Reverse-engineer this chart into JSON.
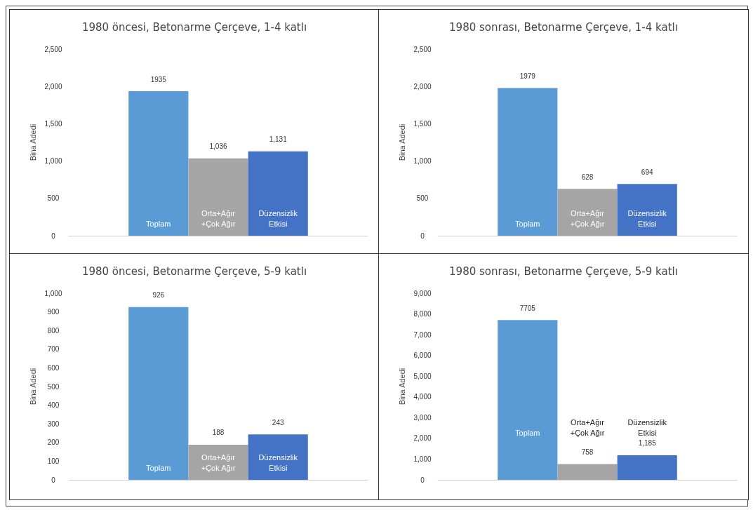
{
  "chart_data": [
    {
      "type": "bar",
      "title": "1980 öncesi, Betonarme Çerçeve, 1-4 katlı",
      "ylabel": "Bina Adedi",
      "categories": [
        "Toplam",
        "Orta+Ağır\n+Çok Ağır",
        "Düzensizlik\nEtkisi"
      ],
      "values": [
        1935,
        1036,
        1131
      ],
      "colors": [
        "#5b9bd5",
        "#a5a5a5",
        "#4472c4"
      ],
      "value_labels": [
        "1935",
        "1,036",
        "1,131"
      ],
      "ylim": [
        0,
        2500
      ],
      "yticks": [
        0,
        {
          "value": 500,
          "label": "500"
        },
        {
          "value": 1000,
          "label": "1,000"
        },
        {
          "value": 1500,
          "label": "1,500"
        },
        {
          "value": 2000,
          "label": "2,000"
        },
        {
          "value": 2500,
          "label": "2,500"
        }
      ],
      "grid": false
    },
    {
      "type": "bar",
      "title": "1980 sonrası, Betonarme Çerçeve, 1-4 katlı",
      "ylabel": "Bina Adedi",
      "categories": [
        "Toplam",
        "Orta+Ağır\n+Çok Ağır",
        "Düzensizlik\nEtkisi"
      ],
      "values": [
        1979,
        628,
        694
      ],
      "colors": [
        "#5b9bd5",
        "#a5a5a5",
        "#4472c4"
      ],
      "value_labels": [
        "1979",
        "628",
        "694"
      ],
      "ylim": [
        0,
        2500
      ],
      "yticks": [
        0,
        {
          "value": 500,
          "label": "500"
        },
        {
          "value": 1000,
          "label": "1,000"
        },
        {
          "value": 1500,
          "label": "1,500"
        },
        {
          "value": 2000,
          "label": "2,000"
        },
        {
          "value": 2500,
          "label": "2,500"
        }
      ],
      "grid": false
    },
    {
      "type": "bar",
      "title": "1980 öncesi, Betonarme Çerçeve, 5-9 katlı",
      "ylabel": "Bina Adedi",
      "categories": [
        "Toplam",
        "Orta+Ağır\n+Çok Ağır",
        "Düzensizlik\nEtkisi"
      ],
      "values": [
        926,
        188,
        243
      ],
      "colors": [
        "#5b9bd5",
        "#a5a5a5",
        "#4472c4"
      ],
      "value_labels": [
        "926",
        "188",
        "243"
      ],
      "ylim": [
        0,
        1000
      ],
      "yticks": [
        0,
        100,
        200,
        300,
        400,
        500,
        600,
        700,
        800,
        900,
        {
          "value": 1000,
          "label": "1,000"
        }
      ],
      "grid": false
    },
    {
      "type": "bar",
      "title": "1980 sonrası, Betonarme Çerçeve, 5-9 katlı",
      "ylabel": "Bina Adedi",
      "categories": [
        "Toplam",
        "Orta+Ağır\n+Çok Ağır",
        "Düzensizlik\nEtkisi"
      ],
      "values": [
        7705,
        758,
        1185
      ],
      "colors": [
        "#5b9bd5",
        "#a5a5a5",
        "#4472c4"
      ],
      "value_labels": [
        "7705",
        "758",
        "1,185"
      ],
      "ylim": [
        0,
        9000
      ],
      "yticks": [
        0,
        {
          "value": 1000,
          "label": "1,000"
        },
        {
          "value": 2000,
          "label": "2,000"
        },
        {
          "value": 3000,
          "label": "3,000"
        },
        {
          "value": 4000,
          "label": "4,000"
        },
        {
          "value": 5000,
          "label": "5,000"
        },
        {
          "value": 6000,
          "label": "6,000"
        },
        {
          "value": 7000,
          "label": "7,000"
        },
        {
          "value": 8000,
          "label": "8,000"
        },
        {
          "value": 9000,
          "label": "9,000"
        }
      ],
      "grid": false
    }
  ]
}
